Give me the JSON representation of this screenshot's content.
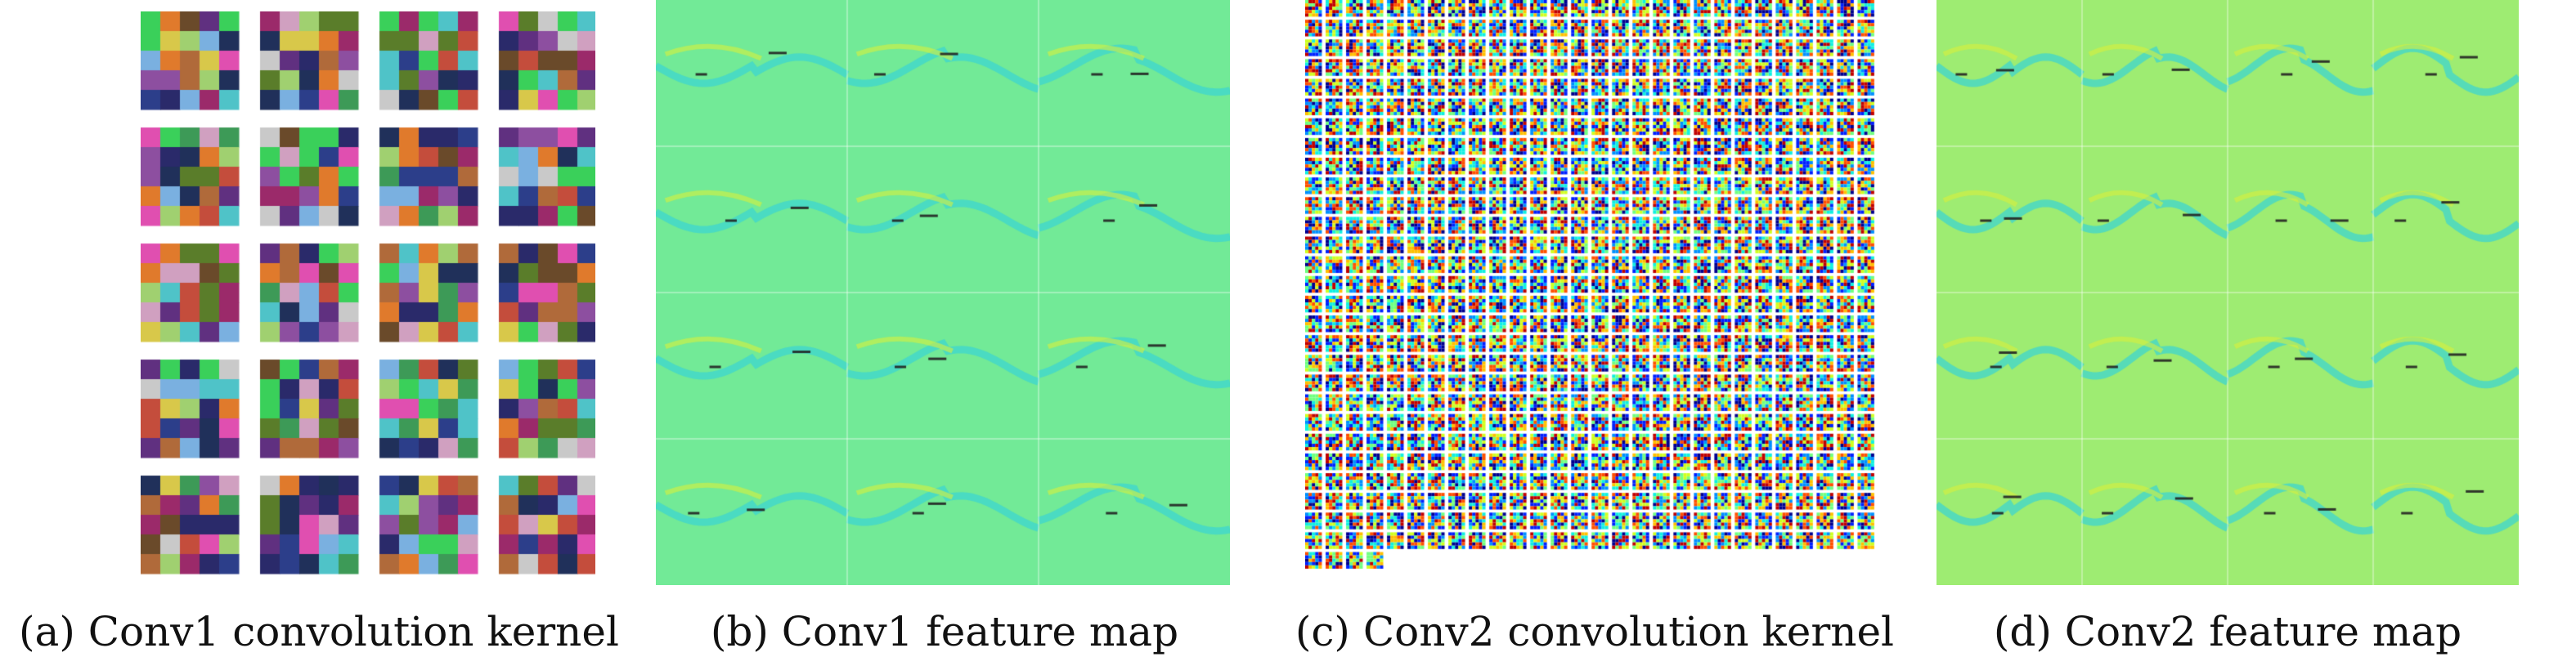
{
  "figure": {
    "panels": [
      {
        "id": "a",
        "caption": "(a) Conv1 convolution kernel"
      },
      {
        "id": "b",
        "caption": "(b) Conv1 feature map"
      },
      {
        "id": "c",
        "caption": "(c) Conv2 convolution kernel"
      },
      {
        "id": "d",
        "caption": "(d) Conv2 feature map"
      }
    ]
  },
  "colors": {
    "feature_bg": "#72ea97",
    "feature_bg_d": "#9eec72",
    "feature_cyan": "#3ed6d0",
    "feature_yellow": "#d8f03c",
    "feature_dark": "#222222",
    "page_bg": "#ffffff"
  }
}
